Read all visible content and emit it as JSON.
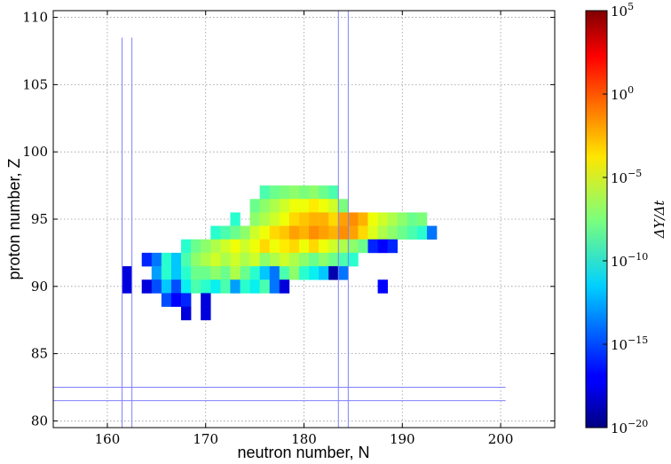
{
  "chart_data": {
    "type": "heatmap",
    "xlabel": "neutron number, N",
    "ylabel": "proton number, Z",
    "xlim": [
      154.5,
      205.5
    ],
    "ylim": [
      79.5,
      110.5
    ],
    "x_ticks": [
      160,
      170,
      180,
      190,
      200
    ],
    "y_ticks": [
      80,
      85,
      90,
      95,
      100,
      105,
      110
    ],
    "grid": true,
    "colorbar": {
      "label": "ΔY/Δt",
      "scale": "log",
      "range": [
        -20,
        5
      ],
      "ticks": [
        {
          "exp": -20,
          "label": "10−20"
        },
        {
          "exp": -15,
          "label": "10−15"
        },
        {
          "exp": -10,
          "label": "10−10"
        },
        {
          "exp": -5,
          "label": "10−5"
        },
        {
          "exp": 0,
          "label": "100"
        },
        {
          "exp": 5,
          "label": "105"
        }
      ],
      "colormap": "jet"
    },
    "guide_lines": {
      "vertical_N": [
        161.5,
        162.5,
        183.5,
        184.5
      ],
      "horizontal_Z": [
        81.5,
        82.5
      ],
      "color": "#8080ff"
    },
    "cells_z_n_log10": [
      {
        "z": 97,
        "n": [
          [
            176,
            -9
          ],
          [
            177,
            -8
          ],
          [
            178,
            -7.5
          ],
          [
            179,
            -7
          ],
          [
            180,
            -7.5
          ],
          [
            181,
            -7
          ],
          [
            182,
            -8
          ],
          [
            183,
            -9
          ]
        ]
      },
      {
        "z": 96,
        "n": [
          [
            175,
            -8
          ],
          [
            176,
            -7
          ],
          [
            177,
            -6
          ],
          [
            178,
            -5
          ],
          [
            179,
            -4
          ],
          [
            180,
            -4
          ],
          [
            181,
            -3.5
          ],
          [
            182,
            -4
          ],
          [
            183,
            -5
          ],
          [
            184,
            -7.5
          ]
        ]
      },
      {
        "z": 95,
        "n": [
          [
            173,
            -10
          ],
          [
            175,
            -7
          ],
          [
            176,
            -6
          ],
          [
            177,
            -5
          ],
          [
            178,
            -4
          ],
          [
            179,
            -3
          ],
          [
            180,
            -2.5
          ],
          [
            181,
            -2
          ],
          [
            182,
            -2
          ],
          [
            183,
            -3
          ],
          [
            184,
            -1.5
          ],
          [
            185,
            -1
          ],
          [
            186,
            -2
          ],
          [
            187,
            -4
          ],
          [
            188,
            -5
          ],
          [
            189,
            -6
          ],
          [
            190,
            -7
          ],
          [
            191,
            -8
          ],
          [
            192,
            -7.5
          ]
        ]
      },
      {
        "z": 94,
        "n": [
          [
            171,
            -10
          ],
          [
            172,
            -9
          ],
          [
            173,
            -8
          ],
          [
            174,
            -7
          ],
          [
            175,
            -5
          ],
          [
            176,
            -4
          ],
          [
            177,
            -3
          ],
          [
            178,
            -2.5
          ],
          [
            179,
            -1.5
          ],
          [
            180,
            -2
          ],
          [
            181,
            -1
          ],
          [
            182,
            -1.5
          ],
          [
            183,
            -2
          ],
          [
            184,
            -1
          ],
          [
            185,
            -1.5
          ],
          [
            186,
            -3
          ],
          [
            187,
            -4.5
          ],
          [
            188,
            -6
          ],
          [
            189,
            -7
          ],
          [
            190,
            -8
          ],
          [
            191,
            -9
          ],
          [
            192,
            -10
          ],
          [
            193,
            -14
          ]
        ]
      },
      {
        "z": 93,
        "n": [
          [
            168,
            -10
          ],
          [
            169,
            -8
          ],
          [
            170,
            -7
          ],
          [
            171,
            -6
          ],
          [
            172,
            -5
          ],
          [
            173,
            -4
          ],
          [
            174,
            -5
          ],
          [
            175,
            -4
          ],
          [
            176,
            -3
          ],
          [
            177,
            -4
          ],
          [
            178,
            -3.5
          ],
          [
            179,
            -3
          ],
          [
            180,
            -4
          ],
          [
            181,
            -3
          ],
          [
            182,
            -4
          ],
          [
            183,
            -5
          ],
          [
            184,
            -6
          ],
          [
            185,
            -7
          ],
          [
            186,
            -8
          ],
          [
            187,
            -16
          ],
          [
            188,
            -17
          ],
          [
            189,
            -16
          ]
        ]
      },
      {
        "z": 92,
        "n": [
          [
            164,
            -16
          ],
          [
            165,
            -14
          ],
          [
            166,
            -10
          ],
          [
            167,
            -12
          ],
          [
            168,
            -9
          ],
          [
            169,
            -7
          ],
          [
            170,
            -6
          ],
          [
            171,
            -5
          ],
          [
            172,
            -6
          ],
          [
            173,
            -5
          ],
          [
            174,
            -6
          ],
          [
            175,
            -5
          ],
          [
            176,
            -7
          ],
          [
            177,
            -6
          ],
          [
            178,
            -5
          ],
          [
            179,
            -6
          ],
          [
            180,
            -7
          ],
          [
            181,
            -8
          ],
          [
            182,
            -7
          ],
          [
            183,
            -8
          ],
          [
            184,
            -9
          ],
          [
            185,
            -10
          ]
        ]
      },
      {
        "z": 91,
        "n": [
          [
            162,
            -18
          ],
          [
            165,
            -13
          ],
          [
            166,
            -10
          ],
          [
            167,
            -12
          ],
          [
            168,
            -10
          ],
          [
            169,
            -8
          ],
          [
            170,
            -8
          ],
          [
            171,
            -7
          ],
          [
            172,
            -8
          ],
          [
            173,
            -6
          ],
          [
            174,
            -8
          ],
          [
            175,
            -10
          ],
          [
            176,
            -12
          ],
          [
            177,
            -14
          ],
          [
            178,
            -9
          ],
          [
            179,
            -7
          ],
          [
            180,
            -10
          ],
          [
            181,
            -11
          ],
          [
            182,
            -12
          ],
          [
            183,
            -19
          ],
          [
            184,
            -14
          ]
        ]
      },
      {
        "z": 90,
        "n": [
          [
            162,
            -18
          ],
          [
            164,
            -18
          ],
          [
            165,
            -15
          ],
          [
            166,
            -12
          ],
          [
            167,
            -15
          ],
          [
            168,
            -11
          ],
          [
            169,
            -9
          ],
          [
            170,
            -10
          ],
          [
            171,
            -11
          ],
          [
            172,
            -9
          ],
          [
            173,
            -13
          ],
          [
            174,
            -10
          ],
          [
            175,
            -11
          ],
          [
            176,
            -9
          ],
          [
            177,
            -14
          ],
          [
            178,
            -18
          ],
          [
            188,
            -17
          ]
        ]
      },
      {
        "z": 89,
        "n": [
          [
            166,
            -15
          ],
          [
            167,
            -17
          ],
          [
            168,
            -16
          ],
          [
            170,
            -18
          ]
        ]
      },
      {
        "z": 88,
        "n": [
          [
            168,
            -18
          ],
          [
            170,
            -18
          ]
        ]
      }
    ]
  }
}
